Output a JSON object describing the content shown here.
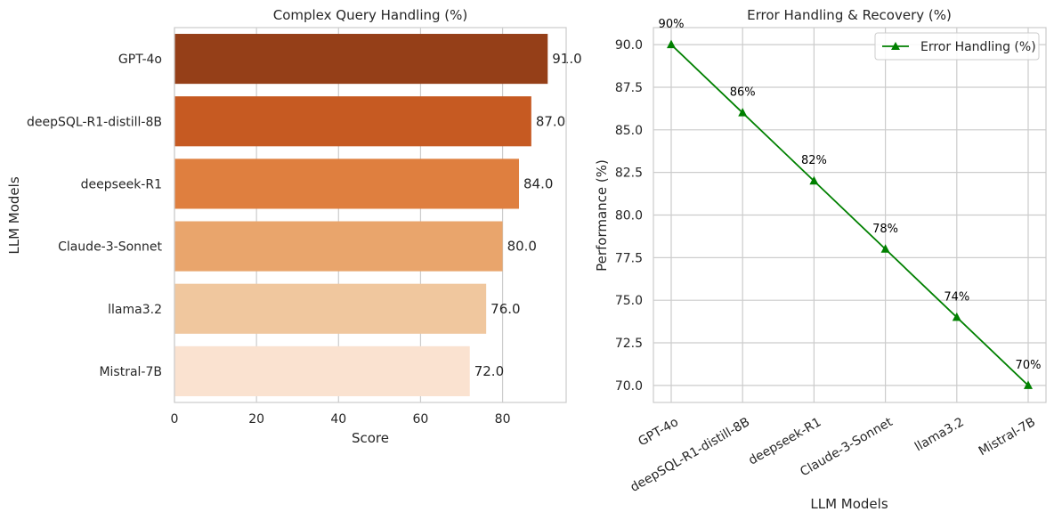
{
  "chart_data": [
    {
      "type": "bar",
      "orientation": "horizontal",
      "title": "Complex Query Handling (%)",
      "xlabel": "Score",
      "ylabel": "LLM Models",
      "categories": [
        "GPT-4o",
        "deepSQL-R1-distill-8B",
        "deepseek-R1",
        "Claude-3-Sonnet",
        "llama3.2",
        "Mistral-7B"
      ],
      "values": [
        91.0,
        87.0,
        84.0,
        80.0,
        76.0,
        72.0
      ],
      "value_labels": [
        "91.0",
        "87.0",
        "84.0",
        "80.0",
        "76.0",
        "72.0"
      ],
      "colors": [
        "#953f18",
        "#c65a22",
        "#df7f3f",
        "#e9a56c",
        "#f0c79e",
        "#fae2d0"
      ],
      "xlim": [
        0,
        95.5
      ],
      "xticks": [
        0,
        20,
        40,
        60,
        80
      ],
      "xtick_labels": [
        "0",
        "20",
        "40",
        "60",
        "80"
      ],
      "grid": true
    },
    {
      "type": "line",
      "title": "Error Handling & Recovery (%)",
      "xlabel": "LLM Models",
      "ylabel": "Performance (%)",
      "categories": [
        "GPT-4o",
        "deepSQL-R1-distill-8B",
        "deepseek-R1",
        "Claude-3-Sonnet",
        "llama3.2",
        "Mistral-7B"
      ],
      "series": [
        {
          "name": "Error Handling (%)",
          "values": [
            90,
            86,
            82,
            78,
            74,
            70
          ],
          "color": "#008000",
          "marker": "triangle"
        }
      ],
      "point_labels": [
        "90%",
        "86%",
        "82%",
        "78%",
        "74%",
        "70%"
      ],
      "ylim": [
        69.0,
        91.0
      ],
      "yticks": [
        70.0,
        72.5,
        75.0,
        77.5,
        80.0,
        82.5,
        85.0,
        87.5,
        90.0
      ],
      "ytick_labels": [
        "70.0",
        "72.5",
        "75.0",
        "77.5",
        "80.0",
        "82.5",
        "85.0",
        "87.5",
        "90.0"
      ],
      "legend_position": "top-right",
      "grid": true
    }
  ]
}
